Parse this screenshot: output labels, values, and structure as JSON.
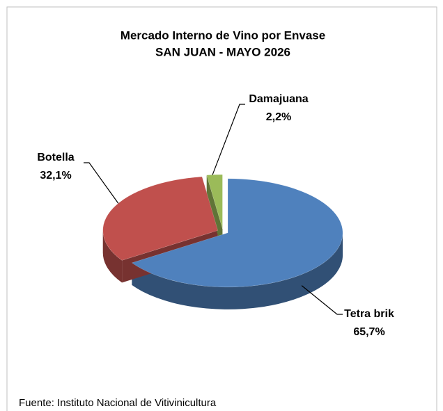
{
  "chart_data": {
    "type": "pie",
    "title": "Mercado Interno de Vino por Envase",
    "subtitle": "SAN JUAN - MAYO 2026",
    "categories": [
      "Tetra brik",
      "Botella",
      "Damajuana"
    ],
    "values": [
      65.7,
      32.1,
      2.2
    ],
    "value_labels": [
      "65,7%",
      "32,1%",
      "2,2%"
    ],
    "colors": [
      "#4f81bd",
      "#c0504d",
      "#9bbb59"
    ],
    "source": "Fuente: Instituto Nacional de Vitivinicultura"
  }
}
